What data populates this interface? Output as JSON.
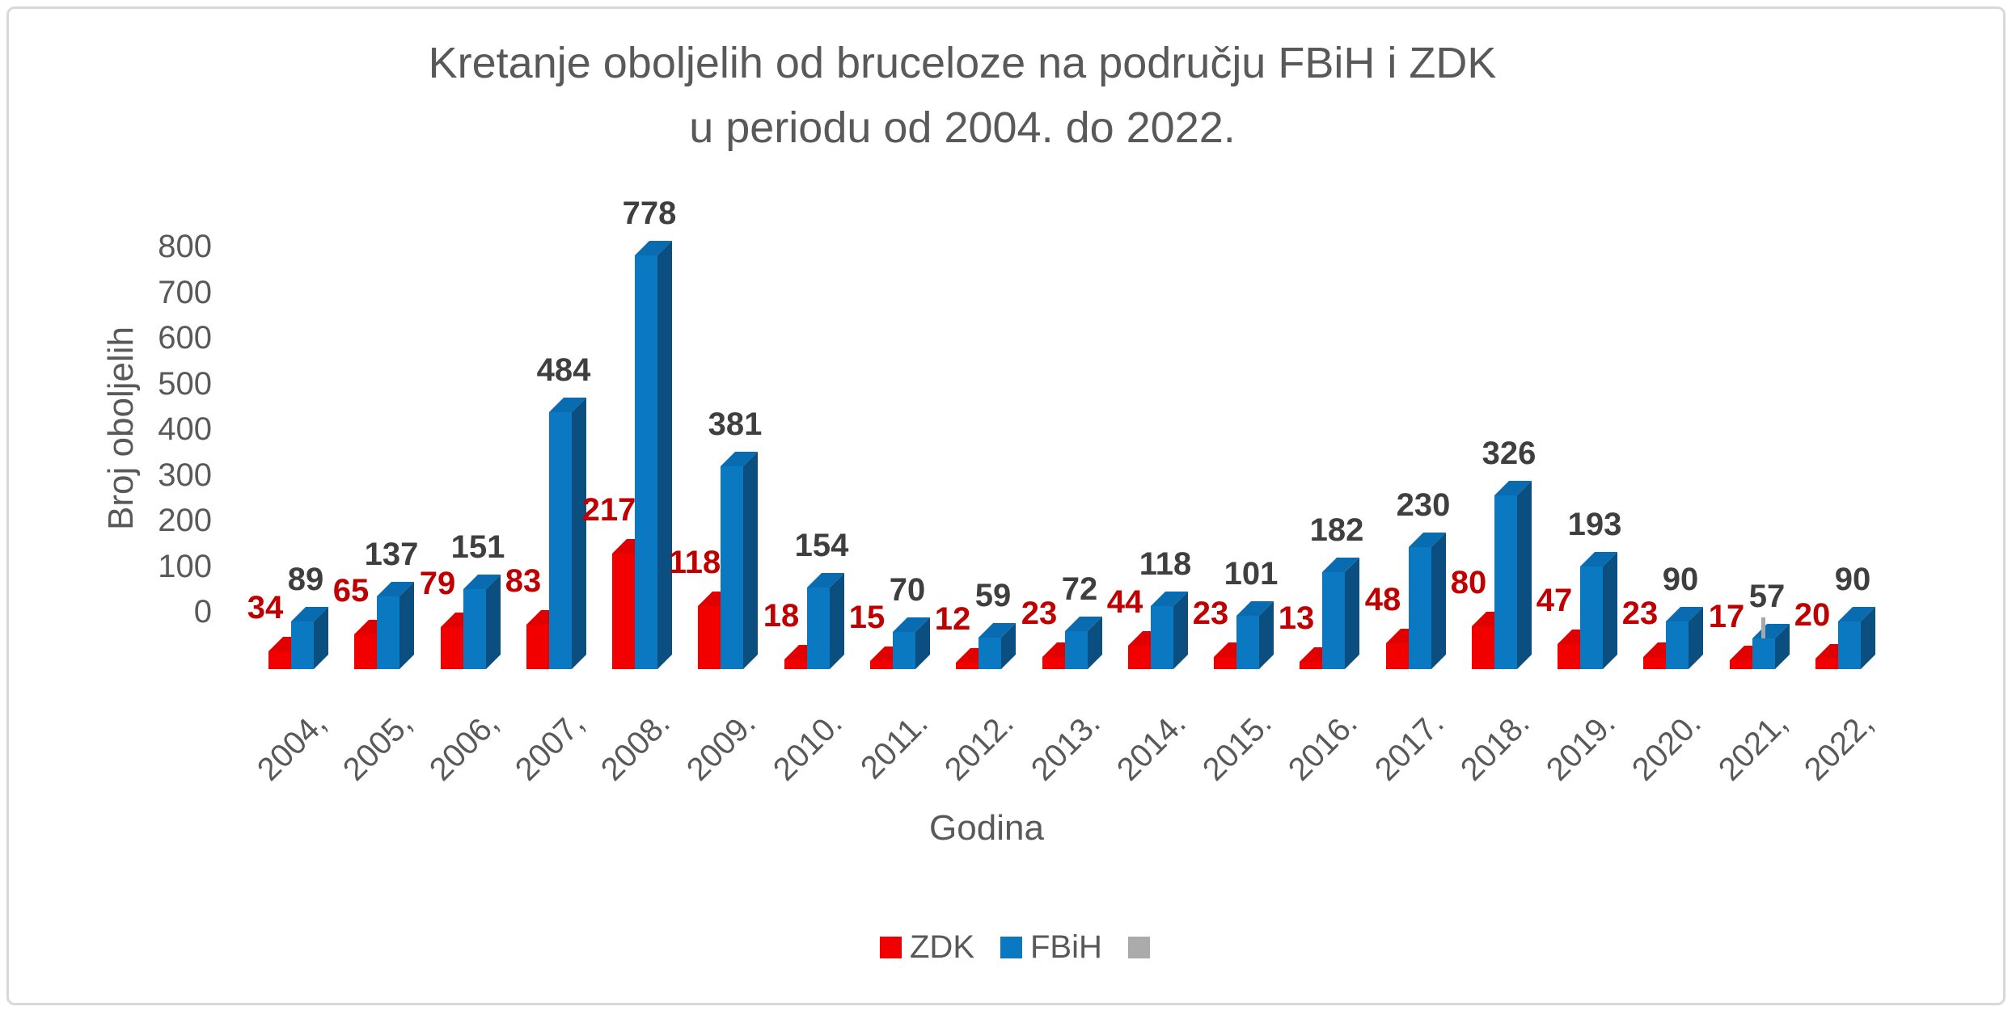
{
  "chart_data": {
    "type": "bar",
    "title": "Kretanje oboljelih od bruceloze na području FBiH i ZDK u periodu od 2004. do 2022.",
    "title_line1": "Kretanje oboljelih od bruceloze na području FBiH i ZDK",
    "title_line2": "u periodu od 2004. do 2022.",
    "xlabel": "Godina",
    "ylabel": "Broj oboljelih",
    "categories": [
      "2004,",
      "2005,",
      "2006,",
      "2007,",
      "2008.",
      "2009.",
      "2010.",
      "2011.",
      "2012.",
      "2013.",
      "2014.",
      "2015.",
      "2016.",
      "2017.",
      "2018.",
      "2019.",
      "2020.",
      "2021,",
      "2022,"
    ],
    "series": [
      {
        "name": "ZDK",
        "color": "#F20000",
        "color_top": "#E00000",
        "color_side": "#B00000",
        "label_color": "#C00000",
        "values": [
          34,
          65,
          79,
          83,
          217,
          118,
          18,
          15,
          12,
          23,
          44,
          23,
          13,
          48,
          80,
          47,
          23,
          17,
          20
        ]
      },
      {
        "name": "FBiH",
        "color": "#0B78C2",
        "color_top": "#0A6CB0",
        "color_side": "#0B4F80",
        "label_color": "#3F3F3F",
        "values": [
          89,
          137,
          151,
          484,
          778,
          381,
          154,
          70,
          59,
          72,
          118,
          101,
          182,
          230,
          326,
          193,
          90,
          57,
          90
        ]
      },
      {
        "name": "",
        "color": "#ABABAB",
        "values": []
      }
    ],
    "yticks": [
      0,
      100,
      200,
      300,
      400,
      500,
      600,
      700,
      800
    ],
    "ylim": [
      0,
      800
    ],
    "grid": false,
    "legend_position": "bottom",
    "stray_gray_tick": {
      "category": "2021,",
      "color": "#A6A6A6"
    },
    "colors": {
      "axis_text": "#595959",
      "frame": "#D9D9D9"
    }
  }
}
